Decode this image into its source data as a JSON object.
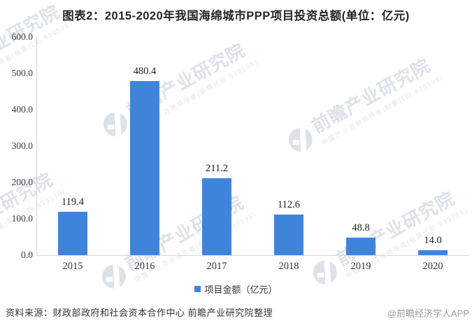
{
  "title": "图表2：2015-2020年我国海绵城市PPP项目投资总额(单位：亿元)",
  "chart_data": {
    "type": "bar",
    "title": "图表2：2015-2020年我国海绵城市PPP项目投资总额(单位：亿元)",
    "categories": [
      "2015",
      "2016",
      "2017",
      "2018",
      "2019",
      "2020"
    ],
    "values": [
      119.4,
      480.4,
      211.2,
      112.6,
      48.8,
      14.0
    ],
    "xlabel": "",
    "ylabel": "",
    "ylim": [
      0,
      600
    ],
    "y_ticks": [
      0,
      100,
      200,
      300,
      400,
      500,
      600
    ],
    "grid": false,
    "legend_position": "bottom",
    "legend_label": "项目金额（亿元）",
    "bar_color": "#3F84DB"
  },
  "footer": {
    "source": "资料来源：财政部政府和社会资本合作中心 前瞻产业研究院整理",
    "credit": "@前瞻经济学人APP"
  },
  "watermark": {
    "brand": "前瞻产业研究院",
    "tagline": "中国产业咨询领导者(股票代码:839599)"
  },
  "colors": {
    "bar": "#3F84DB",
    "axis_line": "#cfd2d6",
    "title_text": "#262626",
    "watermark": "#dde2e9"
  }
}
